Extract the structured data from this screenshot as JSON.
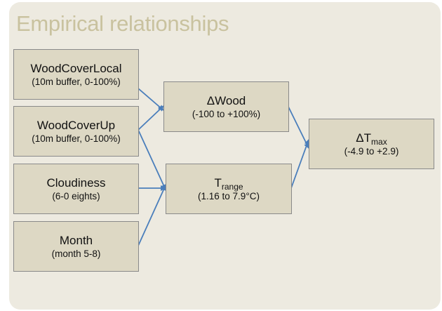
{
  "title": "Empirical relationships",
  "edge_color": "#4a7ebb",
  "nodes": {
    "wood_cover_local": {
      "label": "WoodCoverLocal",
      "range": "(10m buffer, 0-100%)"
    },
    "wood_cover_up": {
      "label": "WoodCoverUp",
      "range": "(10m buffer, 0-100%)"
    },
    "cloudiness": {
      "label": "Cloudiness",
      "range": "(6-0 eights)"
    },
    "month": {
      "label": "Month",
      "range": "(month 5-8)"
    },
    "delta_wood": {
      "label": "ΔWood",
      "range": "(-100 to +100%)"
    },
    "t_range": {
      "label": "T",
      "label_sub": "range",
      "range": "(1.16 to 7.9°C)"
    },
    "delta_tmax": {
      "label": "ΔT",
      "label_sub": "max",
      "range": "(-4.9 to +2.9)"
    }
  },
  "edges": [
    [
      "wood_cover_local",
      "delta_wood"
    ],
    [
      "wood_cover_up",
      "delta_wood"
    ],
    [
      "wood_cover_up",
      "t_range"
    ],
    [
      "cloudiness",
      "t_range"
    ],
    [
      "month",
      "t_range"
    ],
    [
      "delta_wood",
      "delta_tmax"
    ],
    [
      "t_range",
      "delta_tmax"
    ]
  ]
}
